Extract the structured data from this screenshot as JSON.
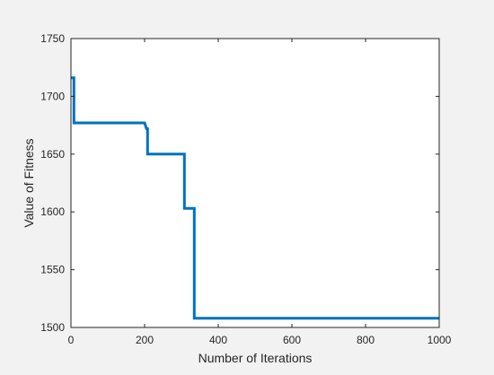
{
  "chart_data": {
    "type": "line",
    "title": "",
    "xlabel": "Number of Iterations",
    "ylabel": "Value of Fitness",
    "xlim": [
      0,
      1000
    ],
    "ylim": [
      1500,
      1750
    ],
    "xticks": [
      0,
      200,
      400,
      600,
      800,
      1000
    ],
    "yticks": [
      1500,
      1550,
      1600,
      1650,
      1700,
      1750
    ],
    "grid": false,
    "legend": "none",
    "series": [
      {
        "line_color": "#0072bd",
        "x": [
          1,
          8,
          8,
          200,
          205,
          205,
          208,
          208,
          308,
          308,
          312,
          312,
          332,
          335,
          335,
          1000
        ],
        "y": [
          1716,
          1716,
          1677,
          1677,
          1672,
          1672,
          1672,
          1650,
          1650,
          1603,
          1603,
          1603,
          1603,
          1603,
          1508,
          1508
        ]
      }
    ]
  }
}
